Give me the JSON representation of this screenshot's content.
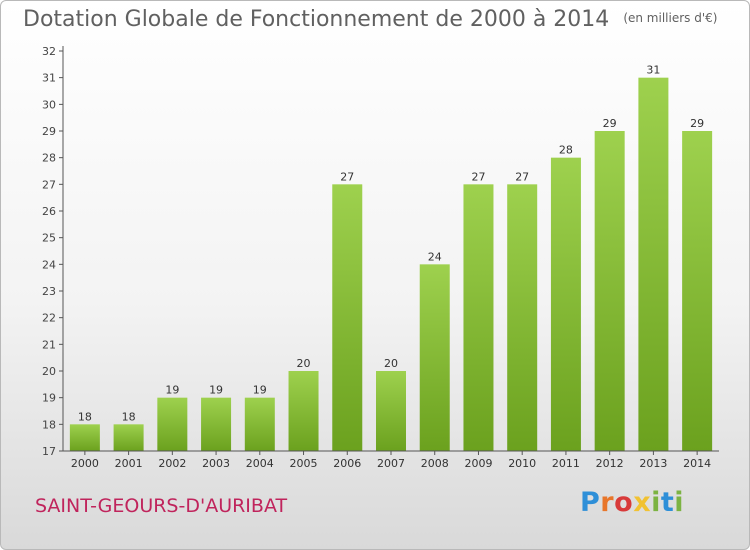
{
  "title": "Dotation Globale de Fonctionnement de 2000 à 2014",
  "unit_note": "(en milliers d'€)",
  "commune": "SAINT-GEOURS-D'AURIBAT",
  "logo": {
    "text": "Proxiti",
    "colors": [
      "#2e8fd8",
      "#e8762a",
      "#d83a3a",
      "#f1c232",
      "#7cb342",
      "#2e8fd8"
    ]
  },
  "colors": {
    "bar_light": "#9ed14e",
    "bar_dark": "#6ba11e",
    "axis": "#555555",
    "grid": "#dcdcdc"
  },
  "chart_data": {
    "type": "bar",
    "title": "Dotation Globale de Fonctionnement de 2000 à 2014",
    "xlabel": "",
    "ylabel": "",
    "categories": [
      "2000",
      "2001",
      "2002",
      "2003",
      "2004",
      "2005",
      "2006",
      "2007",
      "2008",
      "2009",
      "2010",
      "2011",
      "2012",
      "2013",
      "2014"
    ],
    "values": [
      18,
      18,
      19,
      19,
      19,
      20,
      27,
      20,
      24,
      27,
      27,
      28,
      29,
      31,
      29
    ],
    "ylim": [
      17,
      32
    ],
    "yticks": [
      17,
      18,
      19,
      20,
      21,
      22,
      23,
      24,
      25,
      26,
      27,
      28,
      29,
      30,
      31,
      32
    ],
    "data_labels": true,
    "grid": false,
    "legend": "none"
  }
}
